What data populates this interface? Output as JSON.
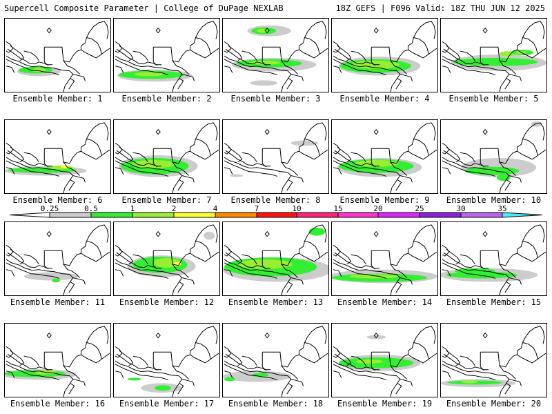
{
  "header": {
    "left": "Supercell Composite Parameter | College of DuPage NEXLAB",
    "right": "18Z GEFS | F096 Valid: 18Z THU JUN 12 2025"
  },
  "colors": {
    "c0": "#cccccc",
    "c1": "#33ee33",
    "c2": "#99ee33",
    "c3": "#ffff33",
    "c4": "#ff8800",
    "c5": "#ff1111",
    "c6": "#ff2277",
    "c7": "#ff33cc",
    "c8": "#dd22ff",
    "c9": "#8822dd",
    "c10": "#bb66ee",
    "c11": "#44eeee"
  },
  "colorbar": {
    "ticks": [
      "0.25",
      "0.5",
      "1",
      "2",
      "4",
      "7",
      "10",
      "15",
      "20",
      "25",
      "30",
      "35"
    ]
  },
  "members": [
    {
      "label": "Ensemble Member: 1",
      "coverage": [
        "light gray",
        "green",
        "light green"
      ]
    },
    {
      "label": "Ensemble Member: 2",
      "coverage": [
        "light gray",
        "green",
        "light green"
      ]
    },
    {
      "label": "Ensemble Member: 3",
      "coverage": [
        "light gray",
        "green",
        "light green"
      ]
    },
    {
      "label": "Ensemble Member: 4",
      "coverage": [
        "light gray",
        "green",
        "light green"
      ]
    },
    {
      "label": "Ensemble Member: 5",
      "coverage": [
        "light gray",
        "green",
        "light green"
      ]
    },
    {
      "label": "Ensemble Member: 6",
      "coverage": [
        "light gray",
        "green",
        "light green",
        "yellow"
      ]
    },
    {
      "label": "Ensemble Member: 7",
      "coverage": [
        "light gray",
        "green",
        "light green"
      ]
    },
    {
      "label": "Ensemble Member: 8",
      "coverage": [
        "light gray"
      ]
    },
    {
      "label": "Ensemble Member: 9",
      "coverage": [
        "light gray",
        "green",
        "light green"
      ]
    },
    {
      "label": "Ensemble Member: 10",
      "coverage": [
        "light gray",
        "green"
      ]
    },
    {
      "label": "Ensemble Member: 11",
      "coverage": [
        "light gray",
        "green"
      ]
    },
    {
      "label": "Ensemble Member: 12",
      "coverage": [
        "light gray",
        "green",
        "light green",
        "yellow"
      ]
    },
    {
      "label": "Ensemble Member: 13",
      "coverage": [
        "light gray",
        "green",
        "light green"
      ]
    },
    {
      "label": "Ensemble Member: 14",
      "coverage": [
        "light gray",
        "green",
        "light green"
      ]
    },
    {
      "label": "Ensemble Member: 15",
      "coverage": [
        "light gray",
        "green"
      ]
    },
    {
      "label": "Ensemble Member: 16",
      "coverage": [
        "light gray",
        "green",
        "light green"
      ]
    },
    {
      "label": "Ensemble Member: 17",
      "coverage": [
        "light gray",
        "green"
      ]
    },
    {
      "label": "Ensemble Member: 18",
      "coverage": [
        "light gray",
        "green"
      ]
    },
    {
      "label": "Ensemble Member: 19",
      "coverage": [
        "light gray",
        "green",
        "light green"
      ]
    },
    {
      "label": "Ensemble Member: 20",
      "coverage": [
        "light gray",
        "green",
        "light green"
      ]
    }
  ]
}
